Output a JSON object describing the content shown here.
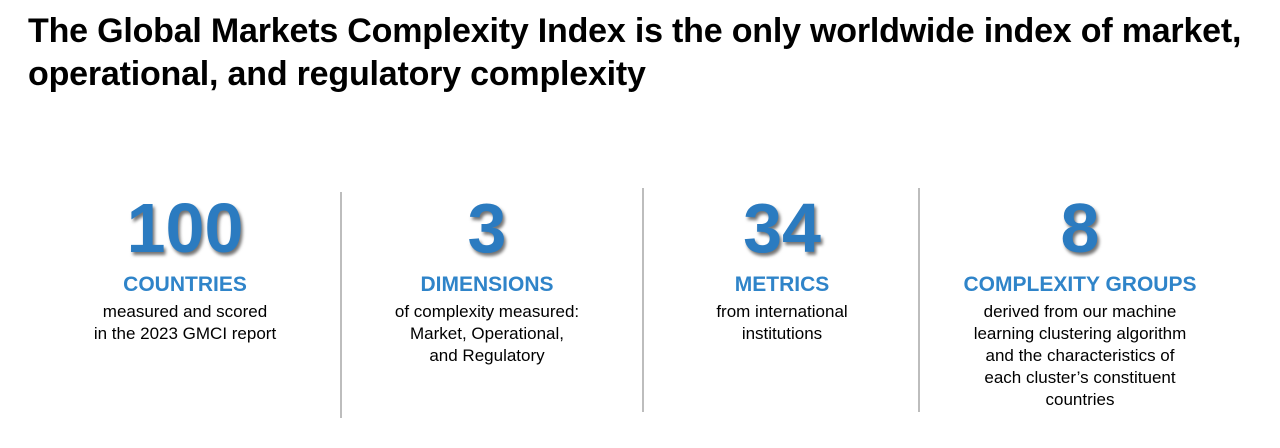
{
  "title": "The Global Markets Complexity Index is the only worldwide index of market, operational, and regulatory complexity",
  "colors": {
    "accent": "#2b7bc0",
    "divider": "#bdbdbd",
    "text": "#000000"
  },
  "stats": [
    {
      "number": "100",
      "label": "COUNTRIES",
      "lines": [
        "measured and scored",
        "in the 2023 GMCI report"
      ]
    },
    {
      "number": "3",
      "label": "DIMENSIONS",
      "lines": [
        "of complexity measured:",
        "Market, Operational,",
        "and Regulatory"
      ]
    },
    {
      "number": "34",
      "label": "METRICS",
      "lines": [
        "from international",
        "institutions"
      ]
    },
    {
      "number": "8",
      "label": "COMPLEXITY GROUPS",
      "lines": [
        "derived from our machine",
        "learning clustering algorithm",
        "and the characteristics of",
        "each cluster’s constituent",
        "countries"
      ]
    }
  ]
}
